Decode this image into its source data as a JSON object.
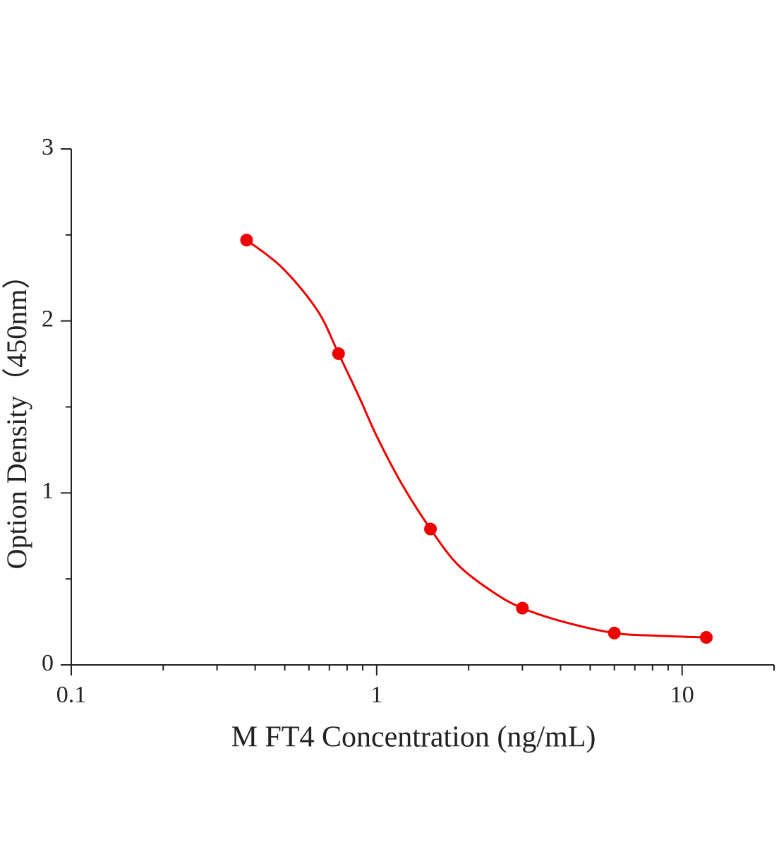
{
  "chart_data": {
    "type": "scatter",
    "x_label": "M FT4 Concentration (ng/mL)",
    "y_label": "Option Density（450nm）",
    "x": [
      0.375,
      0.75,
      1.5,
      3,
      6,
      12
    ],
    "values": [
      2.47,
      1.81,
      0.79,
      0.33,
      0.185,
      0.16
    ],
    "color": "#ee0000",
    "curve": {
      "x": [
        0.375,
        0.49,
        0.64,
        0.75,
        0.88,
        1,
        1.21,
        1.5,
        1.85,
        2.42,
        3,
        4.1,
        6,
        8.2,
        12
      ],
      "values": [
        2.47,
        2.31,
        2.06,
        1.81,
        1.55,
        1.33,
        1.05,
        0.79,
        0.58,
        0.42,
        0.33,
        0.25,
        0.185,
        0.17,
        0.16
      ]
    },
    "xscale": "log",
    "xlim": [
      0.1,
      20
    ],
    "xticks": [
      0.1,
      1,
      10
    ],
    "xminorticks": [
      0.2,
      0.3,
      0.4,
      0.5,
      0.6,
      0.7,
      0.8,
      0.9,
      2,
      3,
      4,
      5,
      6,
      7,
      8,
      9,
      20
    ],
    "ylim": [
      0,
      3
    ],
    "yticks": [
      0,
      1,
      2,
      3
    ],
    "yminorticks": [
      0.5,
      1.5,
      2.5
    ]
  }
}
